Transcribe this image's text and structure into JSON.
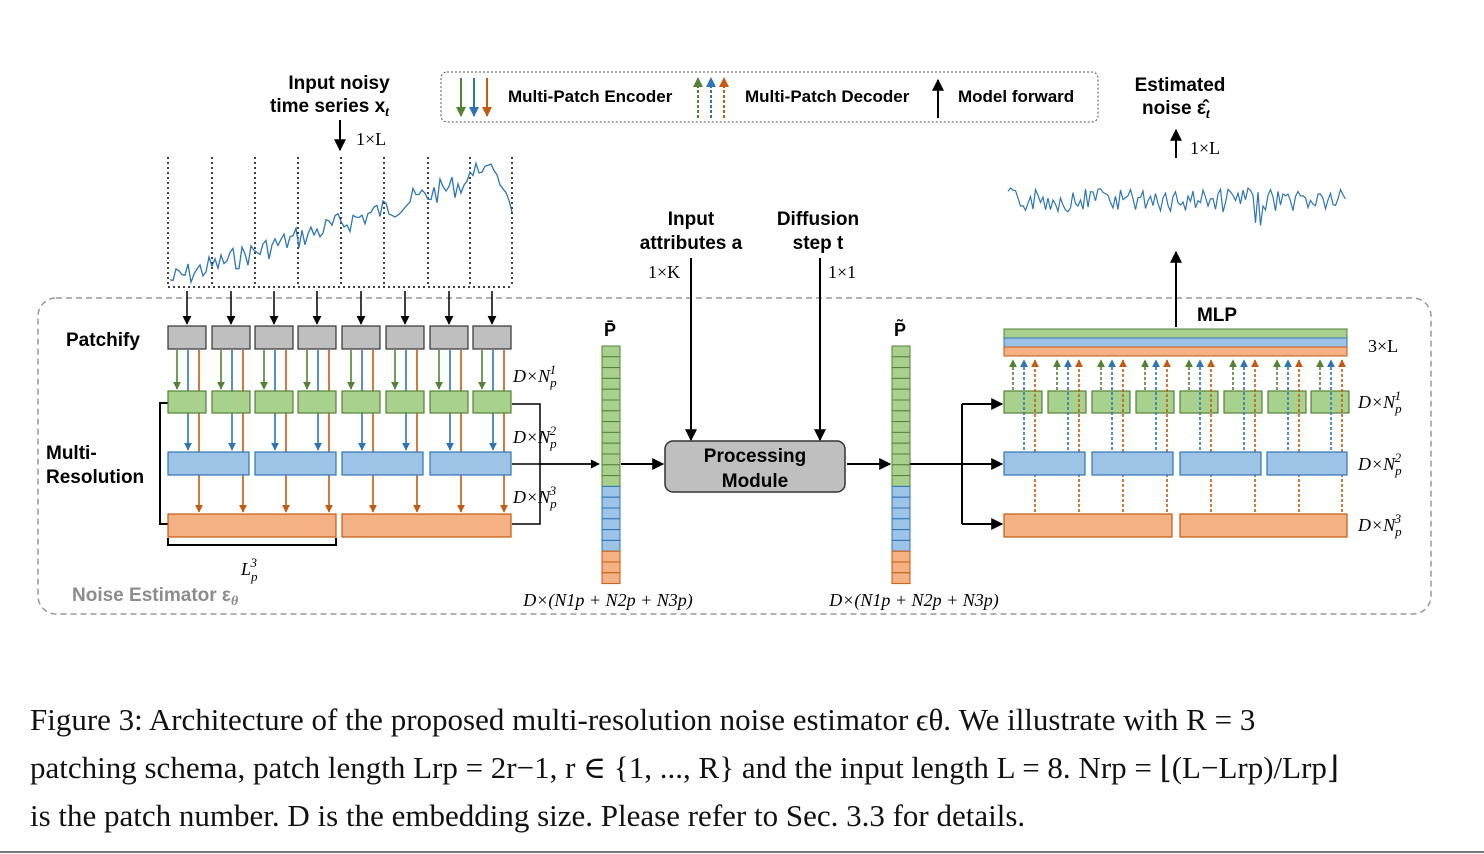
{
  "legend": {
    "encoder_label": "Multi-Patch Encoder",
    "decoder_label": "Multi-Patch Decoder",
    "forward_label": "Model forward"
  },
  "input": {
    "title_line1": "Input noisy",
    "title_line2": "time series x",
    "title_sub": "t",
    "dim": "1×L"
  },
  "output": {
    "title_line1": "Estimated",
    "title_line2": "noise ε̂",
    "title_sub": "t",
    "dim": "1×L"
  },
  "attributes": {
    "line1": "Input",
    "line2": "attributes a",
    "dim": "1×K"
  },
  "diffusion": {
    "line1": "Diffusion",
    "line2": "step t",
    "dim": "1×1"
  },
  "labels": {
    "patchify": "Patchify",
    "multi_line1": "Multi-",
    "multi_line2": "Resolution",
    "noise_estimator": "Noise Estimator ε",
    "noise_estimator_sub": "θ",
    "patch_len": "L",
    "patch_len_sub": "p",
    "patch_len_sup": "3",
    "processing_line1": "Processing",
    "processing_line2": "Module",
    "mlp": "MLP",
    "p_bar": "P̄",
    "p_tilde": "P̃",
    "three_L": "3×L"
  },
  "dims": {
    "d": "D×N",
    "sub": "p",
    "level1": "1",
    "level2": "2",
    "level3": "3",
    "concat": "D×(N1p + N2p + N3p)"
  },
  "colors": {
    "green": "#a9d18e",
    "green_stroke": "#548235",
    "blue": "#9dc3e6",
    "blue_stroke": "#2e75b6",
    "orange": "#f4b183",
    "orange_stroke": "#c55a11",
    "gray": "#bfbfbf",
    "series": "#2e75b6"
  },
  "caption": {
    "line1": "Figure 3:   Architecture of the proposed multi-resolution noise estimator ϵθ. We illustrate with R = 3",
    "line2": "patching schema, patch length Lrp = 2r−1, r ∈ {1, ..., R} and the input length L = 8. Nrp = ⌊(L−Lrp)/Lrp⌋",
    "line3": "is the patch number. D is the embedding size. Please refer to Sec. 3.3 for details."
  }
}
